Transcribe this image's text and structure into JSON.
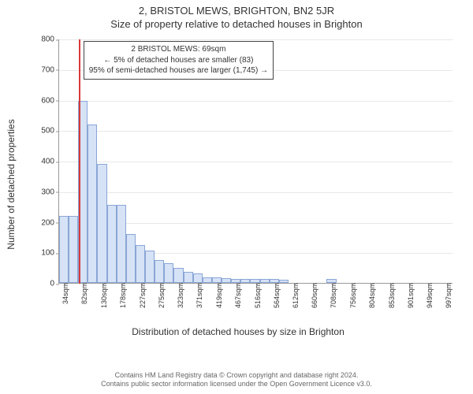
{
  "title": "2, BRISTOL MEWS, BRIGHTON, BN2 5JR",
  "subtitle": "Size of property relative to detached houses in Brighton",
  "chart": {
    "type": "histogram",
    "ylabel": "Number of detached properties",
    "xlabel": "Distribution of detached houses by size in Brighton",
    "background_color": "#ffffff",
    "grid_color": "#e8e8e8",
    "axis_color": "#999999",
    "bar_fill": "#d6e2f6",
    "bar_stroke": "#8aa6d6",
    "marker_color": "#d83a3a",
    "marker_x": 69,
    "xmin": 20,
    "xmax": 1010,
    "ylim": [
      0,
      800
    ],
    "ytick_step": 100,
    "yticks": [
      0,
      100,
      200,
      300,
      400,
      500,
      600,
      700,
      800
    ],
    "xtick_step_sqm": 48,
    "xtick_labels": [
      "34sqm",
      "82sqm",
      "130sqm",
      "178sqm",
      "227sqm",
      "275sqm",
      "323sqm",
      "371sqm",
      "419sqm",
      "467sqm",
      "516sqm",
      "564sqm",
      "612sqm",
      "660sqm",
      "708sqm",
      "756sqm",
      "804sqm",
      "853sqm",
      "901sqm",
      "949sqm",
      "997sqm"
    ],
    "bin_width_sqm": 24,
    "bars": [
      {
        "x_start": 20,
        "value": 220
      },
      {
        "x_start": 44,
        "value": 220
      },
      {
        "x_start": 68,
        "value": 595
      },
      {
        "x_start": 92,
        "value": 520
      },
      {
        "x_start": 116,
        "value": 390
      },
      {
        "x_start": 140,
        "value": 255
      },
      {
        "x_start": 164,
        "value": 255
      },
      {
        "x_start": 188,
        "value": 160
      },
      {
        "x_start": 212,
        "value": 125
      },
      {
        "x_start": 236,
        "value": 105
      },
      {
        "x_start": 260,
        "value": 75
      },
      {
        "x_start": 284,
        "value": 65
      },
      {
        "x_start": 308,
        "value": 50
      },
      {
        "x_start": 332,
        "value": 35
      },
      {
        "x_start": 356,
        "value": 30
      },
      {
        "x_start": 380,
        "value": 18
      },
      {
        "x_start": 404,
        "value": 18
      },
      {
        "x_start": 428,
        "value": 15
      },
      {
        "x_start": 452,
        "value": 14
      },
      {
        "x_start": 476,
        "value": 14
      },
      {
        "x_start": 500,
        "value": 13
      },
      {
        "x_start": 524,
        "value": 13
      },
      {
        "x_start": 548,
        "value": 12
      },
      {
        "x_start": 572,
        "value": 10
      },
      {
        "x_start": 596,
        "value": 0
      },
      {
        "x_start": 620,
        "value": 0
      },
      {
        "x_start": 644,
        "value": 0
      },
      {
        "x_start": 668,
        "value": 0
      },
      {
        "x_start": 692,
        "value": 13
      },
      {
        "x_start": 716,
        "value": 0
      }
    ],
    "infobox": {
      "line1": "2 BRISTOL MEWS: 69sqm",
      "line2": "← 5% of detached houses are smaller (83)",
      "line3": "95% of semi-detached houses are larger (1,745) →"
    },
    "title_fontsize": 13,
    "label_fontsize": 12,
    "tick_fontsize": 10,
    "infobox_fontsize": 10
  },
  "footer": {
    "line1": "Contains HM Land Registry data © Crown copyright and database right 2024.",
    "line2": "Contains public sector information licensed under the Open Government Licence v3.0."
  }
}
